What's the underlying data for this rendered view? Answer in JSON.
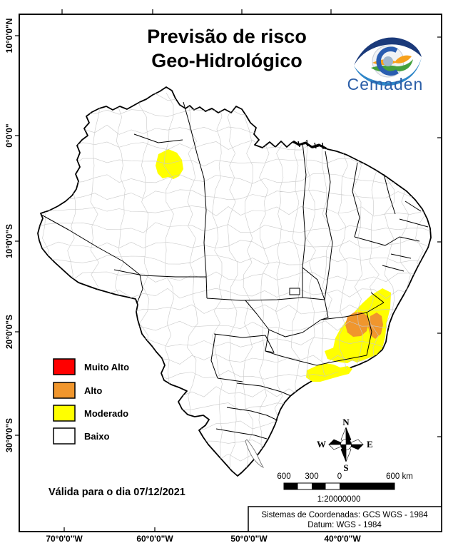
{
  "title": {
    "line1": "Previsão de risco",
    "line2": "Geo-Hidrológico"
  },
  "logo": {
    "name": "Cemaden"
  },
  "legend": {
    "items": [
      {
        "label": "Muito Alto",
        "color": "#FF0000"
      },
      {
        "label": "Alto",
        "color": "#F0962D"
      },
      {
        "label": "Moderado",
        "color": "#FFFF00"
      },
      {
        "label": "Baixo",
        "color": "#FFFFFF"
      }
    ]
  },
  "validity": {
    "text": "Válida para o dia 07/12/2021"
  },
  "compass": {
    "north": "N",
    "south": "S",
    "east": "E",
    "west": "W"
  },
  "scale": {
    "labels": [
      "600",
      "300",
      "0",
      "600 km"
    ],
    "ratio": "1:20000000"
  },
  "coords": {
    "line1": "Sistemas de Coordenadas: GCS WGS - 1984",
    "line2": "Datum: WGS - 1984"
  },
  "axes": {
    "latitude": [
      "10°0'0\"N",
      "0°0'0\"",
      "10°0'0\"S",
      "20°0'0\"S",
      "30°0'0\"S"
    ],
    "longitude": [
      "70°0'0\"W",
      "60°0'0\"W",
      "50°0'0\"W",
      "40°0'0\"W"
    ]
  },
  "risk_regions": [
    {
      "level": "Moderado",
      "color": "#FFFF00"
    },
    {
      "level": "Moderado",
      "color": "#FFFF00"
    },
    {
      "level": "Alto",
      "color": "#F0962D"
    },
    {
      "level": "Alto",
      "color": "#F0962D"
    },
    {
      "level": "Moderado",
      "color": "#FFFF00"
    },
    {
      "level": "Moderado",
      "color": "#FFFF00"
    }
  ]
}
